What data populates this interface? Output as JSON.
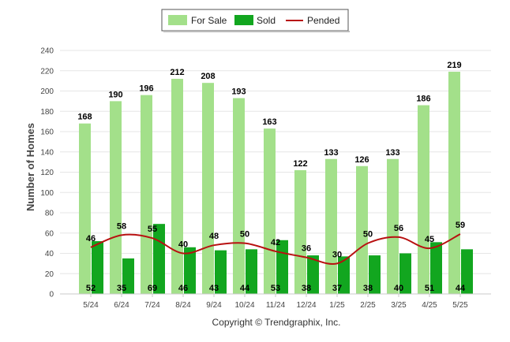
{
  "chart_data": {
    "type": "bar",
    "categories": [
      "5/24",
      "6/24",
      "7/24",
      "8/24",
      "9/24",
      "10/24",
      "11/24",
      "12/24",
      "1/25",
      "2/25",
      "3/25",
      "4/25",
      "5/25"
    ],
    "series": [
      {
        "name": "For Sale",
        "kind": "bar",
        "color": "#a3e08a",
        "values": [
          168,
          190,
          196,
          212,
          208,
          193,
          163,
          122,
          133,
          126,
          133,
          186,
          219
        ]
      },
      {
        "name": "Sold",
        "kind": "bar",
        "color": "#12a61f",
        "values": [
          52,
          35,
          69,
          46,
          43,
          44,
          53,
          38,
          37,
          38,
          40,
          51,
          44
        ]
      },
      {
        "name": "Pended",
        "kind": "line",
        "color": "#b81010",
        "values": [
          46,
          58,
          55,
          40,
          48,
          50,
          42,
          36,
          30,
          50,
          56,
          45,
          59
        ]
      }
    ],
    "ylabel": "Number of Homes",
    "xlabel": "",
    "ylim": [
      0,
      240
    ],
    "yticks": [
      0,
      20,
      40,
      60,
      80,
      100,
      120,
      140,
      160,
      180,
      200,
      220,
      240
    ],
    "grid": true,
    "legend_position": "top-center"
  },
  "footer": {
    "copyright": "Copyright © Trendgraphix, Inc."
  }
}
